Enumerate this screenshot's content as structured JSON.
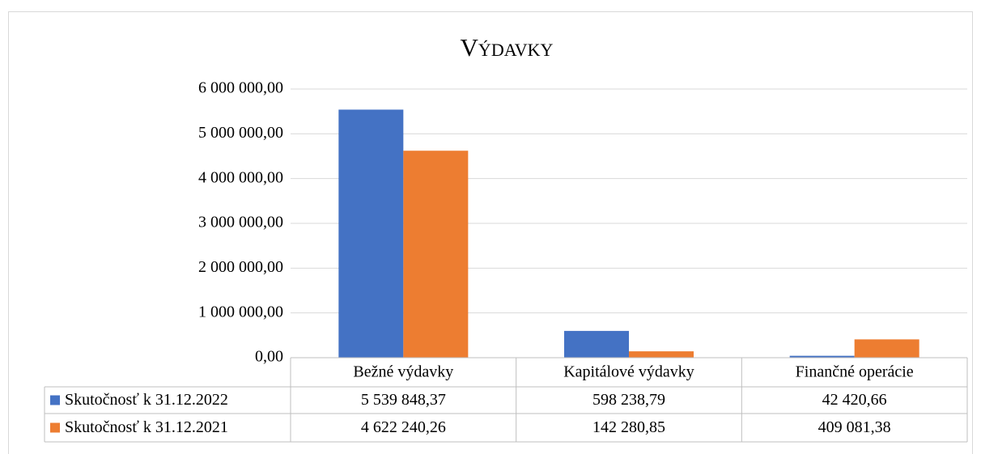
{
  "chart_data": {
    "type": "bar",
    "title": "Výdavky",
    "categories": [
      "Bežné výdavky",
      "Kapitálové výdavky",
      "Finančné operácie"
    ],
    "series": [
      {
        "name": "Skutočnosť k 31.12.2022",
        "color": "#4472c4",
        "values": [
          5539848.37,
          598238.79,
          42420.66
        ],
        "value_labels": [
          "5 539 848,37",
          "598 238,79",
          "42 420,66"
        ]
      },
      {
        "name": "Skutočnosť k 31.12.2021",
        "color": "#ed7d31",
        "values": [
          4622240.26,
          142280.85,
          409081.38
        ],
        "value_labels": [
          "4 622 240,26",
          "142 280,85",
          "409 081,38"
        ]
      }
    ],
    "ylim": [
      0,
      6000000
    ],
    "yticks": [
      {
        "value": 0,
        "label": "0,00"
      },
      {
        "value": 1000000,
        "label": "1 000 000,00"
      },
      {
        "value": 2000000,
        "label": "2 000 000,00"
      },
      {
        "value": 3000000,
        "label": "3 000 000,00"
      },
      {
        "value": 4000000,
        "label": "4 000 000,00"
      },
      {
        "value": 5000000,
        "label": "5 000 000,00"
      },
      {
        "value": 6000000,
        "label": "6 000 000,00"
      }
    ],
    "grid": true,
    "data_table": true
  }
}
